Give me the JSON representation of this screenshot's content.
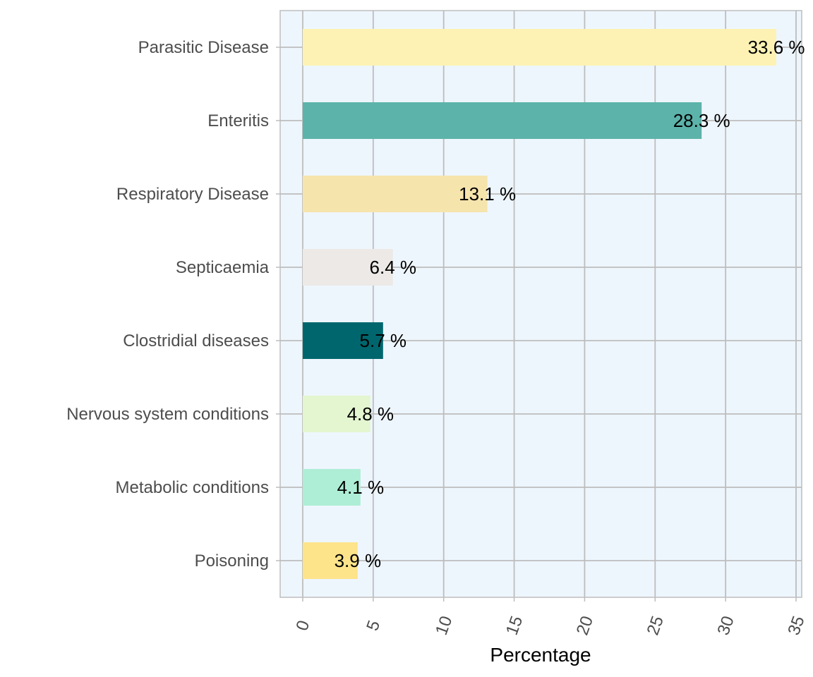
{
  "chart_data": {
    "type": "bar",
    "orientation": "horizontal",
    "categories": [
      "Parasitic Disease",
      "Enteritis",
      "Respiratory Disease",
      "Septicaemia",
      "Clostridial diseases",
      "Nervous system conditions",
      "Metabolic conditions",
      "Poisoning"
    ],
    "values": [
      33.6,
      28.3,
      13.1,
      6.4,
      5.7,
      4.8,
      4.1,
      3.9
    ],
    "value_labels": [
      "33.6 %",
      "28.3 %",
      "13.1 %",
      "6.4 %",
      "5.7 %",
      "4.8 %",
      "4.1 %",
      "3.9 %"
    ],
    "colors": [
      "#fdf2b4",
      "#5cb3aa",
      "#f6e4ad",
      "#ece9e6",
      "#00666e",
      "#e3f6d0",
      "#aeeed6",
      "#fde38a"
    ],
    "xlabel": "Percentage",
    "ylabel": "",
    "title": "",
    "xlim": [
      -1.6,
      35.4
    ],
    "xticks": [
      0,
      5,
      10,
      15,
      20,
      25,
      30,
      35
    ],
    "grid": true,
    "legend": "none",
    "panel_background": "#eef6fd",
    "grid_color": "#bdbdbd"
  }
}
